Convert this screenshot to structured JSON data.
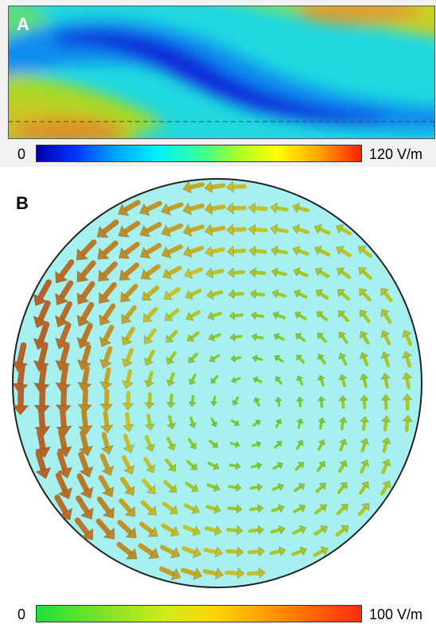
{
  "panel_a": {
    "label": "A",
    "colorbar": {
      "min_label": "0",
      "max_label": "120 V/m",
      "colors": [
        "#0000a8",
        "#0036ff",
        "#00a8ff",
        "#00f0ff",
        "#33ff99",
        "#a5ff2a",
        "#ffff00",
        "#ffa500",
        "#ff2000"
      ]
    },
    "field_colors": {
      "low": "#0a2cd9",
      "mid": "#22e0e8",
      "high": "#c8d020",
      "peak": "#e89a20"
    }
  },
  "panel_b": {
    "label": "B",
    "colorbar": {
      "min_label": "0",
      "max_label": "100 V/m",
      "colors": [
        "#22e03a",
        "#7ae22a",
        "#d4ea1a",
        "#ffd400",
        "#ff9800",
        "#ff2c10"
      ]
    },
    "background_color": "#a6f0ef",
    "arrow_colors": {
      "low": "#58d22a",
      "mid": "#c8c22c",
      "high": "#b4622a"
    }
  }
}
